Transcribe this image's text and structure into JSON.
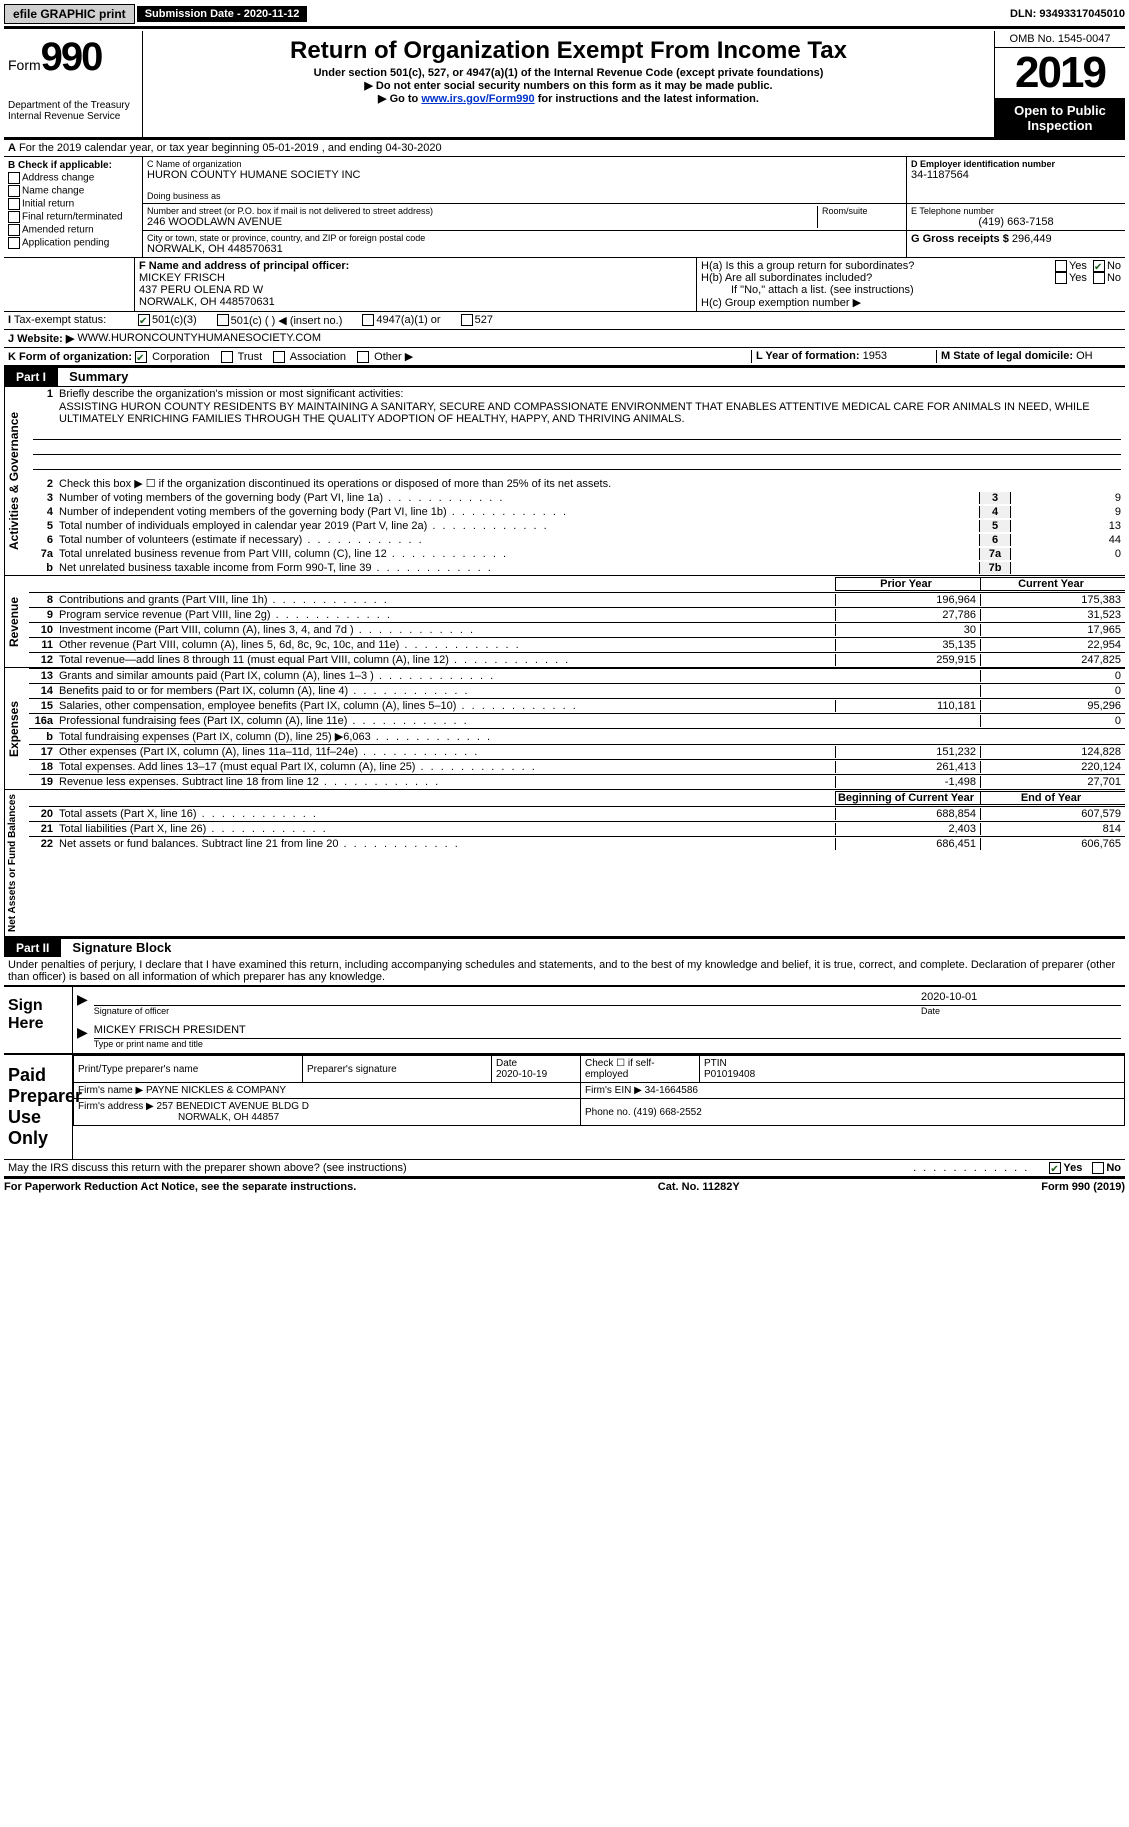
{
  "topbar": {
    "efile": "efile GRAPHIC print",
    "submission_label": "Submission Date - 2020-11-12",
    "dln": "DLN: 93493317045010"
  },
  "header": {
    "form_prefix": "Form",
    "form_number": "990",
    "dept": "Department of the Treasury",
    "irs": "Internal Revenue Service",
    "title": "Return of Organization Exempt From Income Tax",
    "subtitle": "Under section 501(c), 527, or 4947(a)(1) of the Internal Revenue Code (except private foundations)",
    "note1": "▶ Do not enter social security numbers on this form as it may be made public.",
    "note2_pre": "▶ Go to ",
    "note2_link": "www.irs.gov/Form990",
    "note2_post": " for instructions and the latest information.",
    "omb": "OMB No. 1545-0047",
    "year": "2019",
    "inspect1": "Open to Public",
    "inspect2": "Inspection"
  },
  "line_a": "For the 2019 calendar year, or tax year beginning 05-01-2019   , and ending 04-30-2020",
  "section_b": {
    "label": "B Check if applicable:",
    "items": [
      "Address change",
      "Name change",
      "Initial return",
      "Final return/terminated",
      "Amended return",
      "Application pending"
    ]
  },
  "section_c": {
    "name_label": "C Name of organization",
    "name": "HURON COUNTY HUMANE SOCIETY INC",
    "dba_label": "Doing business as",
    "street_label": "Number and street (or P.O. box if mail is not delivered to street address)",
    "room_label": "Room/suite",
    "street": "246 WOODLAWN AVENUE",
    "city_label": "City or town, state or province, country, and ZIP or foreign postal code",
    "city": "NORWALK, OH  448570631"
  },
  "section_d": {
    "label": "D Employer identification number",
    "ein": "34-1187564"
  },
  "section_e": {
    "label": "E Telephone number",
    "phone": "(419) 663-7158"
  },
  "section_g": {
    "label": "G Gross receipts $",
    "value": "296,449"
  },
  "section_f": {
    "label": "F Name and address of principal officer:",
    "name": "MICKEY FRISCH",
    "addr1": "437 PERU OLENA RD W",
    "addr2": "NORWALK, OH  448570631"
  },
  "section_h": {
    "a": "H(a)  Is this a group return for subordinates?",
    "b": "H(b)  Are all subordinates included?",
    "b_note": "If \"No,\" attach a list. (see instructions)",
    "c": "H(c)  Group exemption number ▶",
    "yes": "Yes",
    "no": "No"
  },
  "tax_exempt": {
    "label": "Tax-exempt status:",
    "o1": "501(c)(3)",
    "o2": "501(c) (  ) ◀ (insert no.)",
    "o3": "4947(a)(1) or",
    "o4": "527"
  },
  "website": {
    "label": "J    Website: ▶",
    "value": "WWW.HURONCOUNTYHUMANESOCIETY.COM"
  },
  "section_k": {
    "label": "K Form of organization:",
    "o1": "Corporation",
    "o2": "Trust",
    "o3": "Association",
    "o4": "Other ▶"
  },
  "section_l": {
    "label": "L Year of formation:",
    "value": "1953"
  },
  "section_m": {
    "label": "M State of legal domicile:",
    "value": "OH"
  },
  "part1": {
    "label": "Part I",
    "title": "Summary",
    "vert1": "Activities & Governance",
    "vert2": "Revenue",
    "vert3": "Expenses",
    "vert4": "Net Assets or Fund Balances",
    "line1_label": "Briefly describe the organization's mission or most significant activities:",
    "mission": "ASSISTING HURON COUNTY RESIDENTS BY MAINTAINING A SANITARY, SECURE AND COMPASSIONATE ENVIRONMENT THAT ENABLES ATTENTIVE MEDICAL CARE FOR ANIMALS IN NEED, WHILE ULTIMATELY ENRICHING FAMILIES THROUGH THE QUALITY ADOPTION OF HEALTHY, HAPPY, AND THRIVING ANIMALS.",
    "line2": "Check this box ▶ ☐  if the organization discontinued its operations or disposed of more than 25% of its net assets.",
    "lines_ag": [
      {
        "n": "3",
        "t": "Number of voting members of the governing body (Part VI, line 1a)",
        "v": "9"
      },
      {
        "n": "4",
        "t": "Number of independent voting members of the governing body (Part VI, line 1b)",
        "v": "9"
      },
      {
        "n": "5",
        "t": "Total number of individuals employed in calendar year 2019 (Part V, line 2a)",
        "v": "13"
      },
      {
        "n": "6",
        "t": "Total number of volunteers (estimate if necessary)",
        "v": "44"
      },
      {
        "n": "7a",
        "t": "Total unrelated business revenue from Part VIII, column (C), line 12",
        "v": "0"
      },
      {
        "n": "b",
        "t": "Net unrelated business taxable income from Form 990-T, line 39",
        "box": "7b",
        "v": ""
      }
    ],
    "prior_label": "Prior Year",
    "curr_label": "Current Year",
    "revenue": [
      {
        "n": "8",
        "t": "Contributions and grants (Part VIII, line 1h)",
        "p": "196,964",
        "c": "175,383"
      },
      {
        "n": "9",
        "t": "Program service revenue (Part VIII, line 2g)",
        "p": "27,786",
        "c": "31,523"
      },
      {
        "n": "10",
        "t": "Investment income (Part VIII, column (A), lines 3, 4, and 7d )",
        "p": "30",
        "c": "17,965"
      },
      {
        "n": "11",
        "t": "Other revenue (Part VIII, column (A), lines 5, 6d, 8c, 9c, 10c, and 11e)",
        "p": "35,135",
        "c": "22,954"
      },
      {
        "n": "12",
        "t": "Total revenue—add lines 8 through 11 (must equal Part VIII, column (A), line 12)",
        "p": "259,915",
        "c": "247,825"
      }
    ],
    "expenses": [
      {
        "n": "13",
        "t": "Grants and similar amounts paid (Part IX, column (A), lines 1–3 )",
        "p": "",
        "c": "0"
      },
      {
        "n": "14",
        "t": "Benefits paid to or for members (Part IX, column (A), line 4)",
        "p": "",
        "c": "0"
      },
      {
        "n": "15",
        "t": "Salaries, other compensation, employee benefits (Part IX, column (A), lines 5–10)",
        "p": "110,181",
        "c": "95,296"
      },
      {
        "n": "16a",
        "t": "Professional fundraising fees (Part IX, column (A), line 11e)",
        "p": "",
        "c": "0"
      },
      {
        "n": "b",
        "t": "Total fundraising expenses (Part IX, column (D), line 25) ▶6,063",
        "p": "shade",
        "c": "shade"
      },
      {
        "n": "17",
        "t": "Other expenses (Part IX, column (A), lines 11a–11d, 11f–24e)",
        "p": "151,232",
        "c": "124,828"
      },
      {
        "n": "18",
        "t": "Total expenses. Add lines 13–17 (must equal Part IX, column (A), line 25)",
        "p": "261,413",
        "c": "220,124"
      },
      {
        "n": "19",
        "t": "Revenue less expenses. Subtract line 18 from line 12",
        "p": "-1,498",
        "c": "27,701"
      }
    ],
    "begin_label": "Beginning of Current Year",
    "end_label": "End of Year",
    "netassets": [
      {
        "n": "20",
        "t": "Total assets (Part X, line 16)",
        "p": "688,854",
        "c": "607,579"
      },
      {
        "n": "21",
        "t": "Total liabilities (Part X, line 26)",
        "p": "2,403",
        "c": "814"
      },
      {
        "n": "22",
        "t": "Net assets or fund balances. Subtract line 21 from line 20",
        "p": "686,451",
        "c": "606,765"
      }
    ]
  },
  "part2": {
    "label": "Part II",
    "title": "Signature Block",
    "penalty": "Under penalties of perjury, I declare that I have examined this return, including accompanying schedules and statements, and to the best of my knowledge and belief, it is true, correct, and complete. Declaration of preparer (other than officer) is based on all information of which preparer has any knowledge.",
    "sign_here": "Sign Here",
    "sig_officer": "Signature of officer",
    "sig_date": "2020-10-01",
    "date_label": "Date",
    "officer_name": "MICKEY FRISCH  PRESIDENT",
    "officer_name_label": "Type or print name and title",
    "paid": "Paid Preparer Use Only",
    "prep_name_label": "Print/Type preparer's name",
    "prep_sig_label": "Preparer's signature",
    "prep_date_label": "Date",
    "prep_date": "2020-10-19",
    "self_emp": "Check ☐ if self-employed",
    "ptin_label": "PTIN",
    "ptin": "P01019408",
    "firm_name_label": "Firm's name    ▶",
    "firm_name": "PAYNE NICKLES & COMPANY",
    "firm_ein_label": "Firm's EIN ▶",
    "firm_ein": "34-1664586",
    "firm_addr_label": "Firm's address ▶",
    "firm_addr1": "257 BENEDICT AVENUE BLDG D",
    "firm_addr2": "NORWALK, OH  44857",
    "firm_phone_label": "Phone no.",
    "firm_phone": "(419) 668-2552",
    "discuss": "May the IRS discuss this return with the preparer shown above? (see instructions)",
    "yes": "Yes",
    "no": "No"
  },
  "footer": {
    "left": "For Paperwork Reduction Act Notice, see the separate instructions.",
    "center": "Cat. No. 11282Y",
    "right": "Form 990 (2019)"
  }
}
